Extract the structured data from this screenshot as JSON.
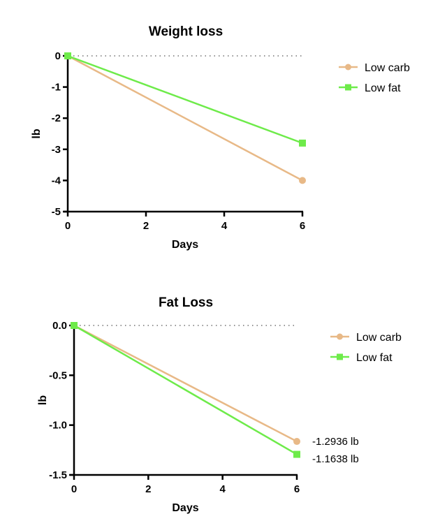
{
  "chart_data": [
    {
      "type": "line",
      "title": "Weight loss",
      "xlabel": "Days",
      "ylabel": "lb",
      "x": [
        0,
        6
      ],
      "xlim": [
        0,
        6
      ],
      "ylim": [
        -5,
        0
      ],
      "xticks": [
        0,
        2,
        4,
        6
      ],
      "yticks": [
        0,
        -1,
        -2,
        -3,
        -4,
        -5
      ],
      "ytick_labels": [
        "0",
        "-1",
        "-2",
        "-3",
        "-4",
        "-5"
      ],
      "reference_line": {
        "y": 0,
        "style": "dotted"
      },
      "legend_position": "top-right",
      "series": [
        {
          "name": "Low carb",
          "marker": "circle",
          "color": "#E8B987",
          "values": [
            0,
            -4.0
          ]
        },
        {
          "name": "Low fat",
          "marker": "square",
          "color": "#6EEB4A",
          "values": [
            0,
            -2.8
          ]
        }
      ],
      "annotations": []
    },
    {
      "type": "line",
      "title": "Fat Loss",
      "xlabel": "Days",
      "ylabel": "lb",
      "x": [
        0,
        6
      ],
      "xlim": [
        0,
        6
      ],
      "ylim": [
        -1.5,
        0
      ],
      "xticks": [
        0,
        2,
        4,
        6
      ],
      "yticks": [
        0,
        -0.5,
        -1.0,
        -1.5
      ],
      "ytick_labels": [
        "0.0",
        "-0.5",
        "-1.0",
        "-1.5"
      ],
      "reference_line": {
        "y": 0,
        "style": "dotted"
      },
      "legend_position": "top-right",
      "series": [
        {
          "name": "Low carb",
          "marker": "circle",
          "color": "#E8B987",
          "values": [
            0,
            -1.1638
          ]
        },
        {
          "name": "Low  fat",
          "marker": "square",
          "color": "#6EEB4A",
          "values": [
            0,
            -1.2936
          ]
        }
      ],
      "annotations": [
        "-1.2936 lb",
        "-1.1638 lb"
      ]
    }
  ]
}
